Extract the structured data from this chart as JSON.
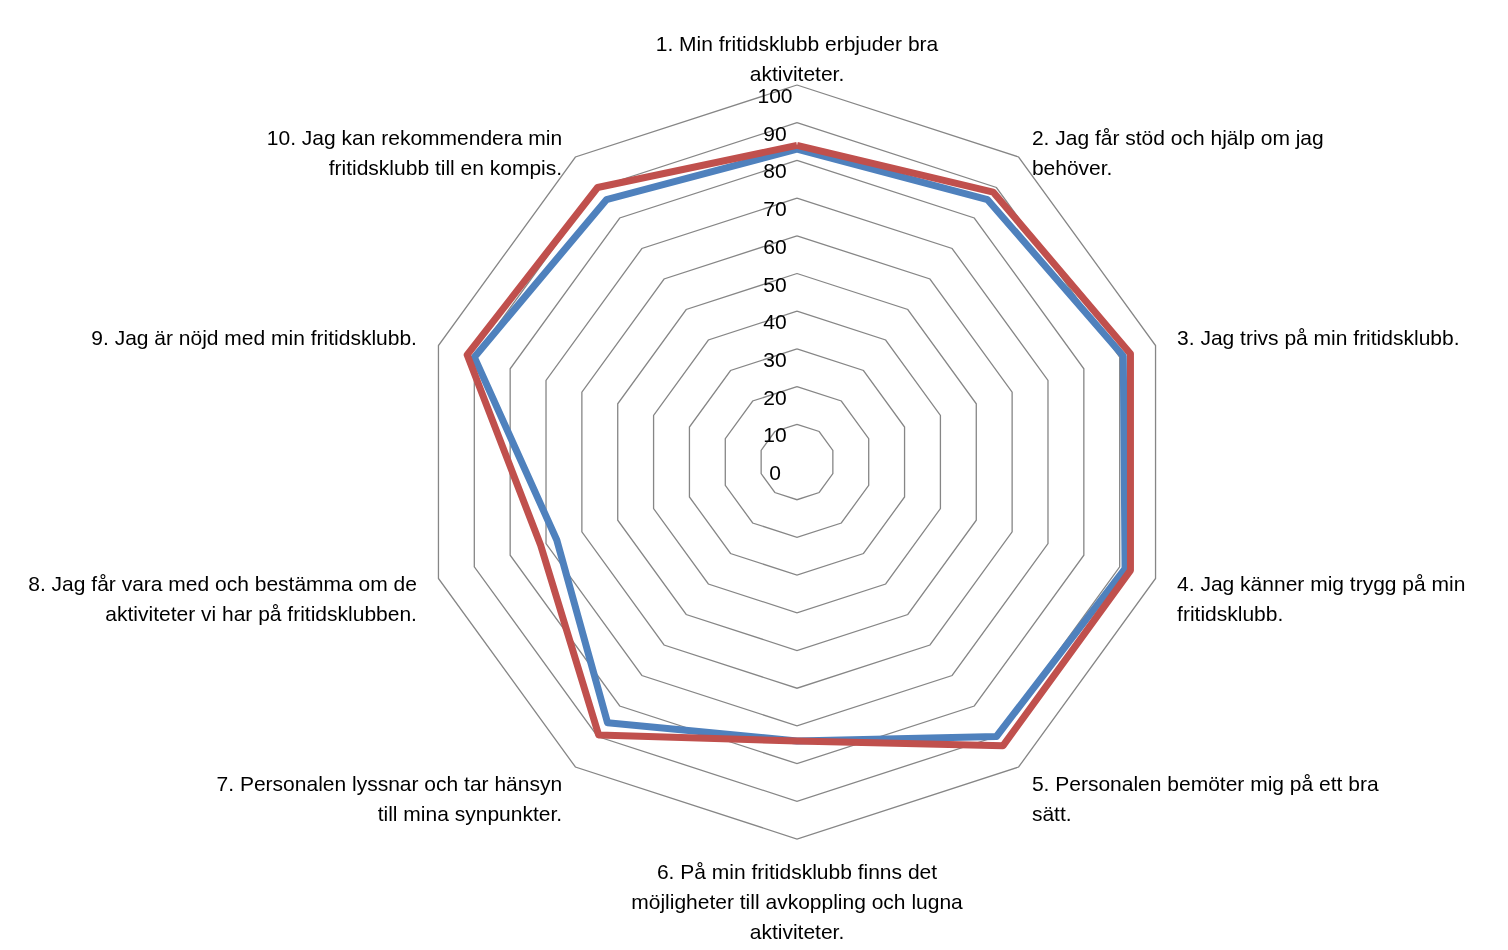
{
  "chart_data": {
    "type": "radar",
    "categories": [
      "1. Min fritidsklubb erbjuder bra aktiviteter.",
      "2. Jag får stöd och hjälp om jag behöver.",
      "3. Jag trivs på min fritidsklubb.",
      "4. Jag känner mig trygg på min fritidsklubb.",
      "5. Personalen bemöter mig på ett bra sätt.",
      "6. På min fritidsklubb finns det möjligheter till avkoppling och lugna aktiviteter.",
      "7. Personalen lyssnar och tar hänsyn till mina synpunkter.",
      "8. Jag får vara med och bestämma om de aktiviteter vi har på fritidsklubben.",
      "9. Jag är nöjd med min fritidsklubb.",
      "10. Jag kan rekommendera min fritidsklubb till en kompis."
    ],
    "series": [
      {
        "color": "#4f81bd",
        "values": [
          83,
          86,
          91,
          91.5,
          90,
          74,
          85.5,
          67,
          90,
          86
        ]
      },
      {
        "color": "#c0504d",
        "values": [
          84,
          88.5,
          93,
          93,
          93,
          74,
          89.5,
          71.5,
          92,
          90
        ]
      }
    ],
    "ylim": [
      0,
      100
    ],
    "yticks": [
      0,
      10,
      20,
      30,
      40,
      50,
      60,
      70,
      80,
      90,
      100
    ],
    "grid": true
  }
}
